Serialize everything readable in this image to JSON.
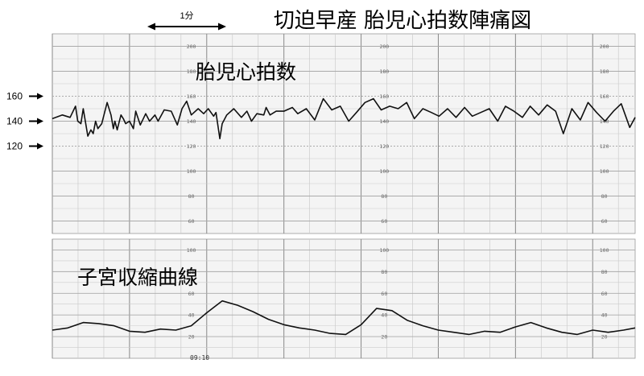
{
  "title": "切迫早産 胎児心拍数陣痛図",
  "time_scale_label": "1分",
  "fhr_label": "胎児心拍数",
  "uc_label": "子宮収縮曲線",
  "reference_labels": [
    "160",
    "140",
    "120"
  ],
  "timestamp": "09:10",
  "grid_numbers_fhr": [
    "200",
    "180",
    "160",
    "140",
    "120",
    "100",
    "80",
    "60"
  ],
  "grid_numbers_uc": [
    "100",
    "80",
    "60",
    "40",
    "20"
  ],
  "colors": {
    "trace": "#111111",
    "grid_major": "#888888",
    "grid_minor": "#cccccc",
    "paper": "#f4f4f4"
  },
  "chart_data": [
    {
      "type": "line",
      "title": "胎児心拍数",
      "xlabel": "",
      "ylabel": "",
      "ylim": [
        50,
        210
      ],
      "yticks": [
        60,
        80,
        100,
        120,
        140,
        160,
        180,
        200
      ],
      "x_unit": "min",
      "xlim": [
        0,
        7.55
      ],
      "series": [
        {
          "name": "",
          "x": [
            0,
            0.13,
            0.23,
            0.3,
            0.33,
            0.37,
            0.4,
            0.46,
            0.5,
            0.53,
            0.56,
            0.59,
            0.64,
            0.71,
            0.76,
            0.79,
            0.81,
            0.84,
            0.86,
            0.89,
            0.92,
            0.95,
            1.0,
            1.05,
            1.08,
            1.14,
            1.21,
            1.26,
            1.33,
            1.37,
            1.45,
            1.54,
            1.62,
            1.68,
            1.74,
            1.8,
            1.89,
            1.96,
            2.02,
            2.09,
            2.12,
            2.17,
            2.2,
            2.26,
            2.35,
            2.45,
            2.52,
            2.58,
            2.65,
            2.74,
            2.77,
            2.82,
            2.9,
            3.0,
            3.11,
            3.18,
            3.29,
            3.4,
            3.51,
            3.62,
            3.73,
            3.84,
            3.94,
            4.05,
            4.16,
            4.26,
            4.37,
            4.48,
            4.59,
            4.69,
            4.8,
            4.91,
            5.01,
            5.12,
            5.23,
            5.34,
            5.44,
            5.55,
            5.66,
            5.77,
            5.87,
            5.98,
            6.09,
            6.19,
            6.3,
            6.41,
            6.52,
            6.62,
            6.73,
            6.84,
            6.94,
            7.05,
            7.16,
            7.27,
            7.37,
            7.48,
            7.55
          ],
          "y": [
            142,
            145,
            143,
            152,
            140,
            138,
            150,
            128,
            133,
            130,
            140,
            134,
            138,
            155,
            145,
            134,
            140,
            133,
            138,
            145,
            142,
            138,
            140,
            134,
            148,
            137,
            146,
            140,
            145,
            140,
            149,
            148,
            137,
            150,
            156,
            145,
            150,
            146,
            150,
            144,
            147,
            126,
            138,
            145,
            150,
            143,
            148,
            140,
            146,
            145,
            151,
            145,
            148,
            148,
            151,
            146,
            150,
            141,
            158,
            149,
            152,
            140,
            147,
            155,
            158,
            149,
            152,
            150,
            155,
            142,
            150,
            147,
            144,
            150,
            143,
            151,
            144,
            147,
            150,
            140,
            152,
            148,
            143,
            152,
            145,
            153,
            148,
            130,
            150,
            141,
            155,
            147,
            140,
            148,
            154,
            135,
            143
          ]
        }
      ]
    },
    {
      "type": "line",
      "title": "子宮収縮曲線",
      "xlabel": "",
      "ylabel": "",
      "ylim": [
        0,
        110
      ],
      "yticks": [
        20,
        40,
        60,
        80,
        100
      ],
      "x_unit": "min",
      "xlim": [
        0,
        7.55
      ],
      "series": [
        {
          "name": "",
          "x": [
            0,
            0.2,
            0.4,
            0.6,
            0.8,
            1.0,
            1.2,
            1.4,
            1.6,
            1.8,
            2.0,
            2.2,
            2.4,
            2.6,
            2.8,
            3.0,
            3.2,
            3.4,
            3.6,
            3.8,
            4.0,
            4.2,
            4.4,
            4.6,
            4.8,
            5.0,
            5.2,
            5.4,
            5.6,
            5.8,
            6.0,
            6.2,
            6.4,
            6.6,
            6.8,
            7.0,
            7.2,
            7.4,
            7.55
          ],
          "y": [
            26,
            28,
            33,
            32,
            30,
            25,
            24,
            27,
            26,
            30,
            42,
            53,
            49,
            43,
            36,
            31,
            28,
            26,
            23,
            22,
            31,
            46,
            44,
            35,
            30,
            26,
            24,
            22,
            25,
            24,
            29,
            33,
            28,
            24,
            22,
            26,
            24,
            26,
            28
          ]
        }
      ]
    }
  ]
}
